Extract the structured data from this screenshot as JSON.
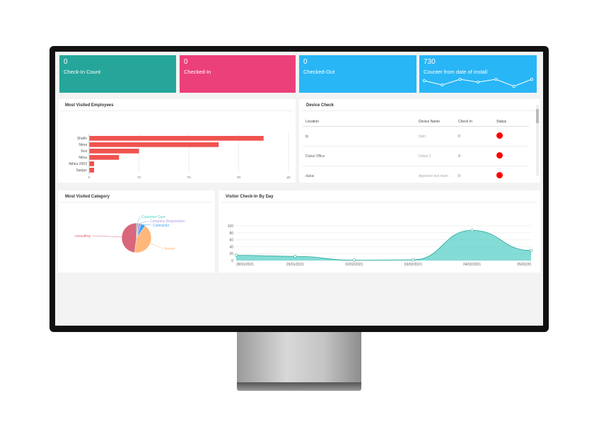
{
  "tiles": [
    {
      "value": "0",
      "label": "Check-In Count",
      "color": "#26a69a"
    },
    {
      "value": "0",
      "label": "Checked-In",
      "color": "#ec407a"
    },
    {
      "value": "0",
      "label": "Checked-Out",
      "color": "#29b6f6"
    },
    {
      "value": "730",
      "label": "Counter from date of install",
      "color": "#29b6f6"
    }
  ],
  "sparkline": [
    6,
    3,
    7,
    5,
    7,
    2,
    7
  ],
  "employees": {
    "title": "Most Visited Employees",
    "type": "bar",
    "categories": [
      "Shafin",
      "Nima",
      "Test",
      "Nima",
      "Athira 2003",
      "Sanjun"
    ],
    "values": [
      35,
      26,
      10,
      6,
      1,
      1
    ],
    "xlim": [
      0,
      40
    ],
    "ticks": [
      "0",
      "10",
      "20",
      "30",
      "40"
    ],
    "color": "#ef5350"
  },
  "device": {
    "title": "Device Check",
    "headers": [
      "Location",
      "Device Name",
      "Check In",
      "Status"
    ],
    "rows": [
      {
        "location": "tp",
        "device": "Spin",
        "checkin": "0",
        "status": "red"
      },
      {
        "location": "Dubai Office",
        "device": "Dubai 1",
        "checkin": "0",
        "status": "red"
      },
      {
        "location": "dubai",
        "device": "Appstore test team",
        "checkin": "0",
        "status": "red"
      }
    ]
  },
  "category": {
    "title": "Most Visited Category",
    "type": "pie",
    "slices": [
      {
        "name": "Customer Care",
        "value": 2,
        "color": "#4dd0c4"
      },
      {
        "name": "Company Registration",
        "value": 3,
        "color": "#b39ddb"
      },
      {
        "name": "Contractor",
        "value": 5,
        "color": "#42a5f5"
      },
      {
        "name": "Vendor",
        "value": 42,
        "color": "#ffb77a"
      },
      {
        "name": "consulting",
        "value": 48,
        "color": "#d9667a"
      }
    ]
  },
  "visitor": {
    "title": "Visitor Check-In By Day",
    "type": "area",
    "x": [
      "28/01/2021",
      "29/01/2021",
      "02/02/2021",
      "03/02/2021",
      "04/02/2021",
      "05/02/20"
    ],
    "values": [
      15,
      12,
      1,
      2,
      87,
      29
    ],
    "ylim": [
      0,
      100
    ],
    "yticks": [
      "0",
      "20",
      "40",
      "60",
      "80",
      "100"
    ],
    "color": "#4ecdc4"
  }
}
